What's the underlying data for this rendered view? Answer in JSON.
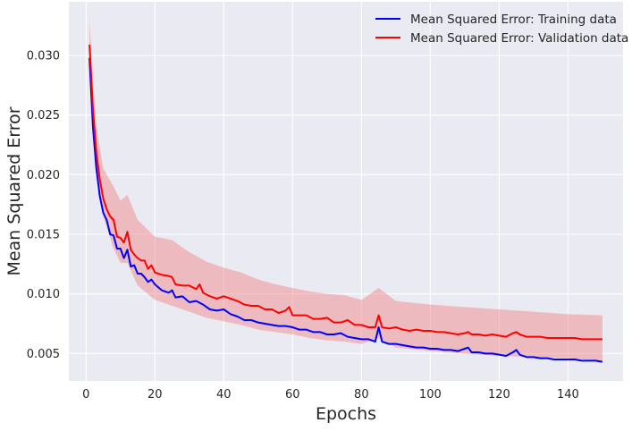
{
  "chart_data": {
    "type": "line",
    "title": "",
    "xlabel": "Epochs",
    "ylabel": "Mean Squared Error",
    "xlim": [
      -5,
      156
    ],
    "ylim": [
      0.0027,
      0.0345
    ],
    "xticks": [
      0,
      20,
      40,
      60,
      80,
      100,
      120,
      140
    ],
    "yticks": [
      0.005,
      0.01,
      0.015,
      0.02,
      0.025,
      0.03
    ],
    "ytick_labels": [
      "0.005",
      "0.010",
      "0.015",
      "0.020",
      "0.025",
      "0.030"
    ],
    "xtick_labels": [
      "0",
      "20",
      "40",
      "60",
      "80",
      "100",
      "120",
      "140"
    ],
    "grid": true,
    "legend_position": "top-right",
    "colors": {
      "background": "#EAEAF2",
      "grid": "#FFFFFF",
      "train": "#0000FF",
      "valid": "#FF0000",
      "band": "#F08080"
    },
    "series": [
      {
        "name": "Mean Squared Error: Training data",
        "color": "#0000FF",
        "keypoints": [
          [
            1,
            0.0298
          ],
          [
            2,
            0.024
          ],
          [
            3,
            0.0205
          ],
          [
            4,
            0.0182
          ],
          [
            5,
            0.0168
          ],
          [
            6,
            0.0162
          ],
          [
            7,
            0.015
          ],
          [
            8,
            0.0149
          ],
          [
            9,
            0.0138
          ],
          [
            10,
            0.0138
          ],
          [
            11,
            0.013
          ],
          [
            12,
            0.0137
          ],
          [
            13,
            0.0123
          ],
          [
            14,
            0.0124
          ],
          [
            15,
            0.0117
          ],
          [
            16,
            0.0117
          ],
          [
            17,
            0.0114
          ],
          [
            18,
            0.011
          ],
          [
            19,
            0.0112
          ],
          [
            20,
            0.0108
          ],
          [
            22,
            0.0103
          ],
          [
            24,
            0.0101
          ],
          [
            25,
            0.0103
          ],
          [
            26,
            0.0097
          ],
          [
            28,
            0.0098
          ],
          [
            30,
            0.0093
          ],
          [
            32,
            0.0094
          ],
          [
            34,
            0.0091
          ],
          [
            36,
            0.0087
          ],
          [
            38,
            0.0086
          ],
          [
            40,
            0.0087
          ],
          [
            42,
            0.0083
          ],
          [
            44,
            0.0081
          ],
          [
            46,
            0.0078
          ],
          [
            48,
            0.0078
          ],
          [
            50,
            0.0076
          ],
          [
            52,
            0.0075
          ],
          [
            54,
            0.0074
          ],
          [
            56,
            0.0073
          ],
          [
            58,
            0.0073
          ],
          [
            60,
            0.0072
          ],
          [
            62,
            0.007
          ],
          [
            64,
            0.007
          ],
          [
            66,
            0.0068
          ],
          [
            68,
            0.0068
          ],
          [
            70,
            0.0066
          ],
          [
            72,
            0.0066
          ],
          [
            74,
            0.0067
          ],
          [
            76,
            0.0064
          ],
          [
            78,
            0.0063
          ],
          [
            80,
            0.0062
          ],
          [
            82,
            0.0062
          ],
          [
            84,
            0.006
          ],
          [
            85,
            0.0072
          ],
          [
            86,
            0.006
          ],
          [
            88,
            0.0058
          ],
          [
            90,
            0.0058
          ],
          [
            92,
            0.0057
          ],
          [
            94,
            0.0056
          ],
          [
            96,
            0.0055
          ],
          [
            98,
            0.0055
          ],
          [
            100,
            0.0054
          ],
          [
            102,
            0.0054
          ],
          [
            104,
            0.0053
          ],
          [
            106,
            0.0053
          ],
          [
            108,
            0.0052
          ],
          [
            110,
            0.0054
          ],
          [
            111,
            0.0055
          ],
          [
            112,
            0.0051
          ],
          [
            114,
            0.0051
          ],
          [
            116,
            0.005
          ],
          [
            118,
            0.005
          ],
          [
            120,
            0.0049
          ],
          [
            122,
            0.0048
          ],
          [
            124,
            0.0051
          ],
          [
            125,
            0.0053
          ],
          [
            126,
            0.0049
          ],
          [
            128,
            0.0047
          ],
          [
            130,
            0.0047
          ],
          [
            132,
            0.0046
          ],
          [
            134,
            0.0046
          ],
          [
            136,
            0.0045
          ],
          [
            138,
            0.0045
          ],
          [
            140,
            0.0045
          ],
          [
            142,
            0.0045
          ],
          [
            144,
            0.0044
          ],
          [
            146,
            0.0044
          ],
          [
            148,
            0.0044
          ],
          [
            150,
            0.0043
          ]
        ]
      },
      {
        "name": "Mean Squared Error: Validation data",
        "color": "#FF0000",
        "keypoints": [
          [
            1,
            0.0309
          ],
          [
            2,
            0.0255
          ],
          [
            3,
            0.0218
          ],
          [
            4,
            0.0196
          ],
          [
            5,
            0.018
          ],
          [
            6,
            0.0171
          ],
          [
            7,
            0.0165
          ],
          [
            8,
            0.0162
          ],
          [
            9,
            0.0148
          ],
          [
            10,
            0.0147
          ],
          [
            11,
            0.0143
          ],
          [
            12,
            0.0152
          ],
          [
            13,
            0.0137
          ],
          [
            14,
            0.0133
          ],
          [
            15,
            0.013
          ],
          [
            16,
            0.0128
          ],
          [
            17,
            0.0128
          ],
          [
            18,
            0.0121
          ],
          [
            19,
            0.0124
          ],
          [
            20,
            0.0118
          ],
          [
            22,
            0.0116
          ],
          [
            24,
            0.0115
          ],
          [
            25,
            0.0114
          ],
          [
            26,
            0.0108
          ],
          [
            28,
            0.0107
          ],
          [
            30,
            0.0107
          ],
          [
            32,
            0.0104
          ],
          [
            33,
            0.0108
          ],
          [
            34,
            0.0101
          ],
          [
            36,
            0.0098
          ],
          [
            38,
            0.0096
          ],
          [
            40,
            0.0098
          ],
          [
            42,
            0.0096
          ],
          [
            44,
            0.0094
          ],
          [
            46,
            0.0091
          ],
          [
            48,
            0.009
          ],
          [
            50,
            0.009
          ],
          [
            52,
            0.0087
          ],
          [
            54,
            0.0087
          ],
          [
            56,
            0.0084
          ],
          [
            58,
            0.0086
          ],
          [
            59,
            0.0089
          ],
          [
            60,
            0.0082
          ],
          [
            62,
            0.0082
          ],
          [
            64,
            0.0082
          ],
          [
            66,
            0.0079
          ],
          [
            68,
            0.0079
          ],
          [
            70,
            0.008
          ],
          [
            72,
            0.0076
          ],
          [
            74,
            0.0076
          ],
          [
            76,
            0.0078
          ],
          [
            78,
            0.0074
          ],
          [
            80,
            0.0074
          ],
          [
            82,
            0.0072
          ],
          [
            84,
            0.0072
          ],
          [
            85,
            0.0082
          ],
          [
            86,
            0.0072
          ],
          [
            88,
            0.0071
          ],
          [
            90,
            0.0072
          ],
          [
            92,
            0.007
          ],
          [
            94,
            0.0069
          ],
          [
            96,
            0.007
          ],
          [
            98,
            0.0069
          ],
          [
            100,
            0.0069
          ],
          [
            102,
            0.0068
          ],
          [
            104,
            0.0068
          ],
          [
            106,
            0.0067
          ],
          [
            108,
            0.0066
          ],
          [
            110,
            0.0067
          ],
          [
            111,
            0.0068
          ],
          [
            112,
            0.0066
          ],
          [
            114,
            0.0066
          ],
          [
            116,
            0.0065
          ],
          [
            118,
            0.0066
          ],
          [
            120,
            0.0065
          ],
          [
            122,
            0.0064
          ],
          [
            124,
            0.0067
          ],
          [
            125,
            0.0068
          ],
          [
            126,
            0.0066
          ],
          [
            128,
            0.0064
          ],
          [
            130,
            0.0064
          ],
          [
            132,
            0.0064
          ],
          [
            134,
            0.0063
          ],
          [
            136,
            0.0063
          ],
          [
            138,
            0.0063
          ],
          [
            140,
            0.0063
          ],
          [
            142,
            0.0063
          ],
          [
            144,
            0.0062
          ],
          [
            146,
            0.0062
          ],
          [
            148,
            0.0062
          ],
          [
            150,
            0.0062
          ]
        ]
      }
    ],
    "band": {
      "series": "Mean Squared Error: Validation data",
      "upper_keypoints": [
        [
          1,
          0.033
        ],
        [
          2,
          0.0278
        ],
        [
          3,
          0.024
        ],
        [
          5,
          0.0205
        ],
        [
          8,
          0.019
        ],
        [
          10,
          0.0178
        ],
        [
          12,
          0.0183
        ],
        [
          15,
          0.0162
        ],
        [
          20,
          0.0148
        ],
        [
          25,
          0.0145
        ],
        [
          30,
          0.0135
        ],
        [
          35,
          0.0127
        ],
        [
          40,
          0.0122
        ],
        [
          45,
          0.0118
        ],
        [
          50,
          0.0112
        ],
        [
          55,
          0.0108
        ],
        [
          60,
          0.0105
        ],
        [
          65,
          0.0102
        ],
        [
          70,
          0.01
        ],
        [
          75,
          0.0099
        ],
        [
          80,
          0.0095
        ],
        [
          85,
          0.0105
        ],
        [
          90,
          0.0094
        ],
        [
          100,
          0.0091
        ],
        [
          110,
          0.0089
        ],
        [
          120,
          0.0087
        ],
        [
          130,
          0.0085
        ],
        [
          140,
          0.0083
        ],
        [
          150,
          0.0082
        ]
      ],
      "lower_keypoints": [
        [
          1,
          0.029
        ],
        [
          2,
          0.0236
        ],
        [
          3,
          0.0198
        ],
        [
          5,
          0.0165
        ],
        [
          8,
          0.0138
        ],
        [
          10,
          0.0126
        ],
        [
          12,
          0.0126
        ],
        [
          15,
          0.0107
        ],
        [
          20,
          0.0095
        ],
        [
          25,
          0.009
        ],
        [
          30,
          0.0085
        ],
        [
          35,
          0.008
        ],
        [
          40,
          0.0077
        ],
        [
          45,
          0.0074
        ],
        [
          50,
          0.007
        ],
        [
          55,
          0.0068
        ],
        [
          60,
          0.0066
        ],
        [
          65,
          0.0063
        ],
        [
          70,
          0.0061
        ],
        [
          75,
          0.006
        ],
        [
          80,
          0.0058
        ],
        [
          85,
          0.0063
        ],
        [
          90,
          0.0055
        ],
        [
          100,
          0.0052
        ],
        [
          110,
          0.005
        ],
        [
          120,
          0.0048
        ],
        [
          130,
          0.0047
        ],
        [
          140,
          0.0046
        ],
        [
          150,
          0.0044
        ]
      ]
    }
  }
}
